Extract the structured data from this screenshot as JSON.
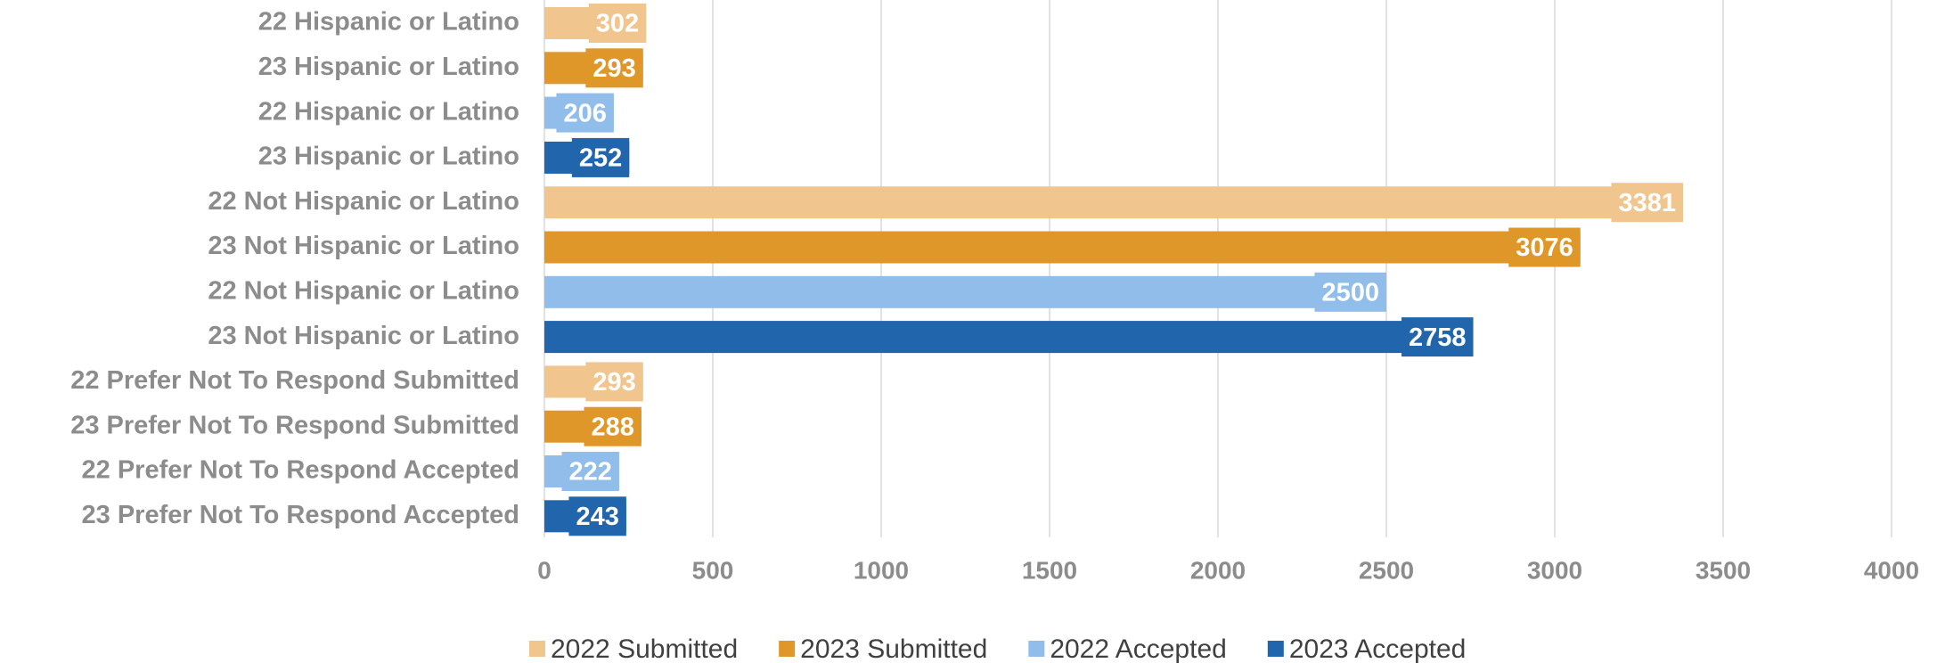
{
  "chart_data": {
    "type": "bar",
    "orientation": "horizontal",
    "categories": [
      "22 Hispanic or Latino",
      "23 Hispanic or Latino",
      "22 Hispanic or Latino",
      "23 Hispanic or Latino",
      "22 Not Hispanic or Latino",
      "23 Not Hispanic or Latino",
      "22 Not Hispanic or Latino",
      "23 Not Hispanic or Latino",
      "22 Prefer Not To Respond Submitted",
      "23 Prefer Not To Respond Submitted",
      "22 Prefer Not To Respond Accepted",
      "23 Prefer Not To Respond Accepted"
    ],
    "series": [
      {
        "name": "2022 Submitted",
        "color": "#f0c68e",
        "values": [
          302,
          null,
          null,
          null,
          3381,
          null,
          null,
          null,
          293,
          null,
          null,
          null
        ]
      },
      {
        "name": "2023 Submitted",
        "color": "#e0972a",
        "values": [
          null,
          293,
          null,
          null,
          null,
          3076,
          null,
          null,
          null,
          288,
          null,
          null
        ]
      },
      {
        "name": "2022 Accepted",
        "color": "#90bdea",
        "values": [
          null,
          null,
          206,
          null,
          null,
          null,
          2500,
          null,
          null,
          null,
          222,
          null
        ]
      },
      {
        "name": "2023 Accepted",
        "color": "#2166ac",
        "values": [
          null,
          null,
          null,
          252,
          null,
          null,
          null,
          2758,
          null,
          null,
          null,
          243
        ]
      }
    ],
    "xlim": [
      0,
      4000
    ],
    "xticks": [
      0,
      500,
      1000,
      1500,
      2000,
      2500,
      3000,
      3500,
      4000
    ],
    "grid": true,
    "legend": "bottom"
  }
}
